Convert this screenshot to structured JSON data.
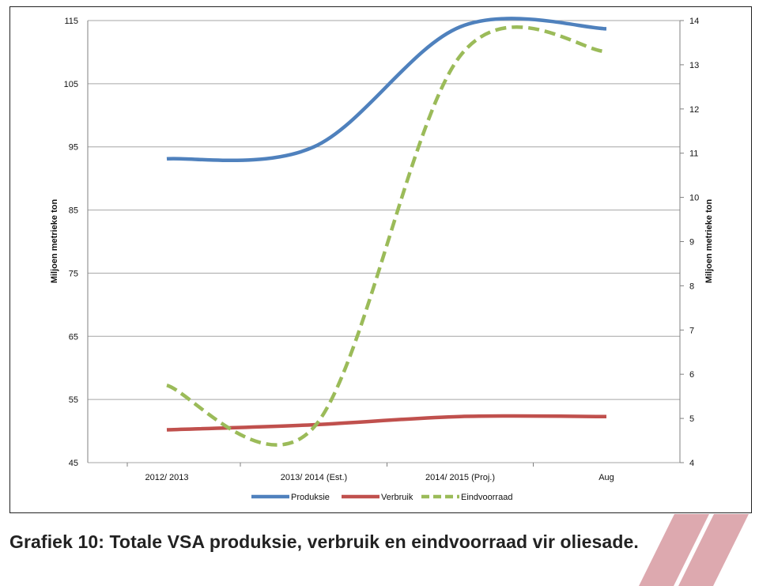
{
  "chart_data": {
    "type": "line",
    "categories": [
      "2012/ 2013",
      "2013/ 2014 (Est.)",
      "2014/ 2015 (Proj.)",
      "Aug"
    ],
    "left_axis": {
      "label": "Miljoen metrieke ton",
      "ylim": [
        45,
        115
      ],
      "ticks": [
        "45",
        "55",
        "65",
        "75",
        "85",
        "95",
        "105",
        "115"
      ]
    },
    "right_axis": {
      "label": "Miljoen metrieke ton",
      "ylim": [
        4,
        14
      ],
      "ticks": [
        "4",
        "5",
        "6",
        "7",
        "8",
        "9",
        "10",
        "11",
        "12",
        "13",
        "14"
      ]
    },
    "grid": true,
    "legend_position": "bottom",
    "series": [
      {
        "name": "Produksie",
        "axis": "left",
        "color": "#4f81bd",
        "dashed": false,
        "values": [
          93.1,
          95.0,
          114.0,
          113.7
        ]
      },
      {
        "name": "Verbruik",
        "axis": "left",
        "color": "#c0504d",
        "dashed": false,
        "values": [
          50.2,
          51.0,
          52.3,
          52.3
        ]
      },
      {
        "name": "Eindvoorraad",
        "axis": "right",
        "color": "#9bbb59",
        "dashed": true,
        "values": [
          5.75,
          4.8,
          13.2,
          13.3
        ]
      }
    ]
  },
  "caption": "Grafiek 10: Totale VSA produksie, verbruik en eindvoorraad vir oliesade.",
  "watermark_color": "#d9a0a6"
}
